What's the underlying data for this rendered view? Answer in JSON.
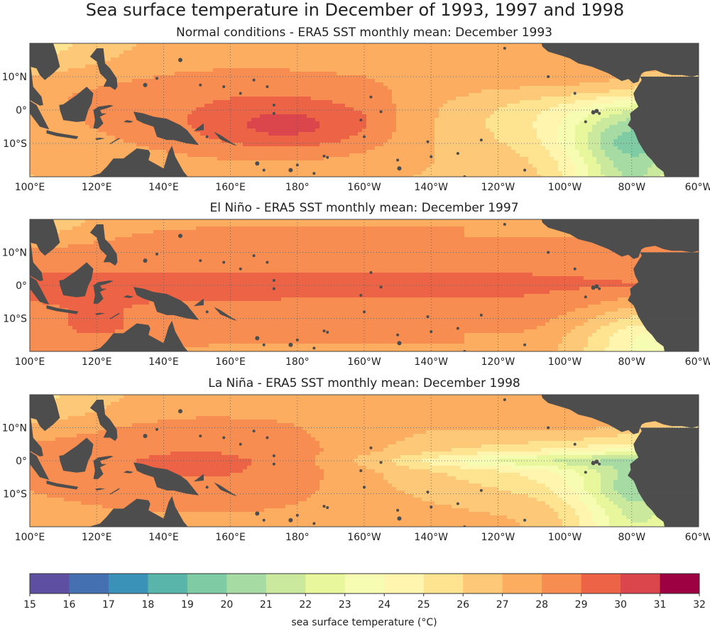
{
  "title": "Sea surface temperature in December of 1993, 1997 and 1998",
  "panels": [
    {
      "title": "Normal conditions - ERA5 SST monthly mean: December 1993",
      "scenario": "normal",
      "lat_ticks": [
        "10°N",
        "0°",
        "10°S"
      ],
      "lon_ticks": [
        "100°E",
        "120°E",
        "140°E",
        "160°E",
        "180°",
        "160°W",
        "140°W",
        "120°W",
        "100°W",
        "80°W",
        "60°W"
      ]
    },
    {
      "title": "El Niño - ERA5 SST monthly mean: December 1997",
      "scenario": "elnino",
      "lat_ticks": [
        "10°N",
        "0°",
        "10°S"
      ],
      "lon_ticks": [
        "100°E",
        "120°E",
        "140°E",
        "160°E",
        "180°",
        "160°W",
        "140°W",
        "120°W",
        "100°W",
        "80°W",
        "60°W"
      ]
    },
    {
      "title": "La Niña - ERA5 SST monthly mean: December 1998",
      "scenario": "lanina",
      "lat_ticks": [
        "10°N",
        "0°",
        "10°S"
      ],
      "lon_ticks": [
        "100°E",
        "120°E",
        "140°E",
        "160°E",
        "180°",
        "160°W",
        "140°W",
        "120°W",
        "100°W",
        "80°W",
        "60°W"
      ]
    }
  ],
  "map_extent": {
    "lon": [
      100,
      300
    ],
    "lat": [
      -20,
      20
    ]
  },
  "colorbar": {
    "label": "sea surface temperature (°C)",
    "ticks": [
      "15",
      "16",
      "17",
      "18",
      "19",
      "20",
      "21",
      "22",
      "23",
      "24",
      "25",
      "26",
      "27",
      "28",
      "29",
      "30",
      "31",
      "32"
    ],
    "colors": [
      "#5e4fa2",
      "#4470b1",
      "#3b92b8",
      "#59b4aa",
      "#7ecba4",
      "#a6dba4",
      "#cae99d",
      "#e8f69c",
      "#f7fcb3",
      "#fff5ae",
      "#fee391",
      "#fdc877",
      "#fdad60",
      "#f88d51",
      "#ed6345",
      "#da464c",
      "#9e0142"
    ]
  },
  "land_color": "#4d4d4d"
}
